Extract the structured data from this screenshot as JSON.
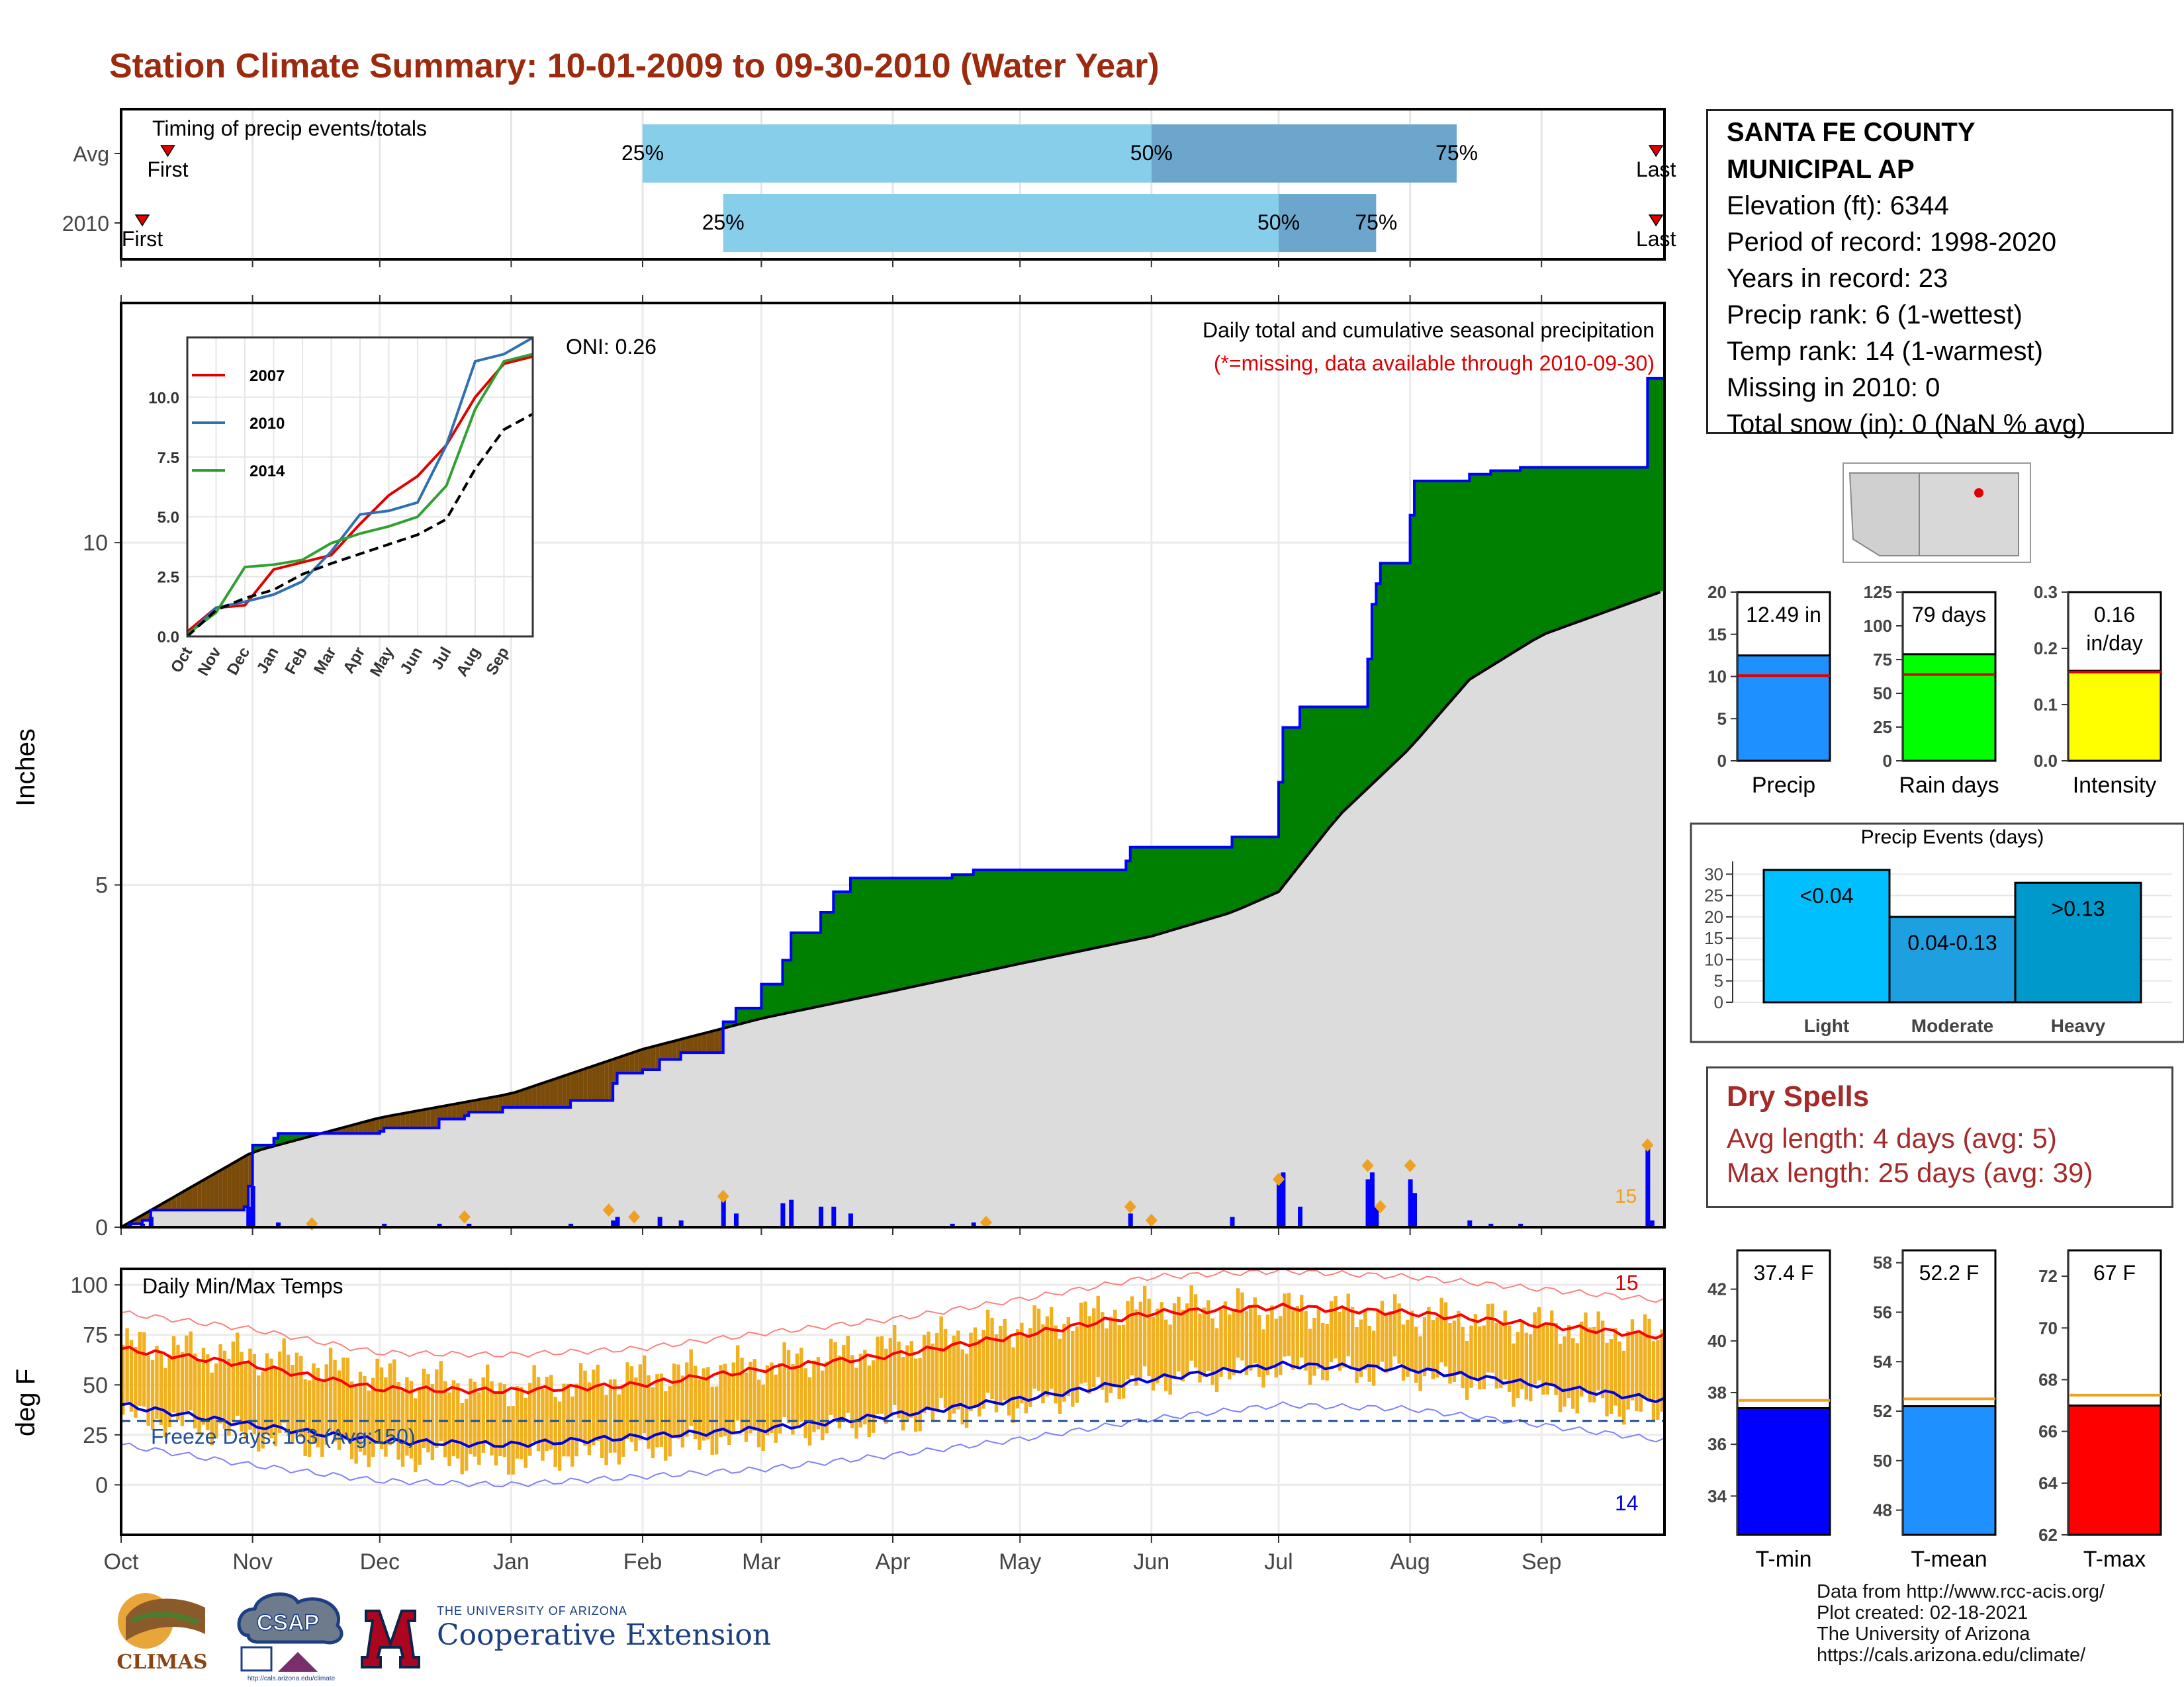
{
  "page": {
    "title": "Station Climate Summary: 10-01-2009 to 09-30-2010 (Water Year)"
  },
  "station": {
    "name_line1": "SANTA FE COUNTY",
    "name_line2": "MUNICIPAL AP",
    "elevation": "Elevation (ft): 6344",
    "period": "Period of record: 1998-2020",
    "years": "Years in record: 23",
    "precip_rank": "Precip rank: 6 (1-wettest)",
    "temp_rank": "Temp rank: 14 (1-warmest)",
    "missing": "Missing in 2010: 0",
    "snow": "Total snow (in): 0 (NaN % avg)"
  },
  "dry_spells": {
    "title": "Dry Spells",
    "avg": "Avg length: 4 days (avg: 5)",
    "max": "Max length: 25 days (avg: 39)"
  },
  "credits": {
    "line1": "Data from http://www.rcc-acis.org/",
    "line2": "Plot created: 02-18-2021",
    "line3": "The University of Arizona",
    "line4": "https://cals.arizona.edu/climate/"
  },
  "logos": {
    "climas": "CLIMAS",
    "csap": "CSAP",
    "csap_url": "http://cals.arizona.edu/climate",
    "coop_small": "THE UNIVERSITY OF ARIZONA",
    "coop_big": "Cooperative Extension"
  },
  "chart_data": [
    {
      "id": "timing",
      "type": "bar",
      "title": "Timing of precip events/totals",
      "rows": [
        {
          "label": "Avg",
          "first": "Oct 12",
          "p25": "Feb 1",
          "p50": "Jun 1",
          "p75": "Aug 12",
          "last": "Sep 28"
        },
        {
          "label": "2010",
          "first": "Oct 6",
          "p25": "Feb 20",
          "p50": "Jul 1",
          "p75": "Jul 24",
          "last": "Sep 28"
        }
      ],
      "labels": {
        "first": "First",
        "last": "Last",
        "p25": "25%",
        "p50": "50%",
        "p75": "75%"
      },
      "colors": {
        "light": "#87CEEB",
        "dark": "#6CA6CD",
        "marker": "#E00000"
      }
    },
    {
      "id": "precipitation",
      "type": "area",
      "ylabel": "Inches",
      "ylim": [
        0,
        13.5
      ],
      "yticks": [
        0,
        5,
        10
      ],
      "xticks": [
        "Oct",
        "Nov",
        "Dec",
        "Jan",
        "Feb",
        "Mar",
        "Apr",
        "May",
        "Jun",
        "Jul",
        "Aug",
        "Sep"
      ],
      "legend_text": "Daily total and cumulative seasonal precipitation",
      "note": "(*=missing, data available through 2010-09-30)",
      "oni": "ONI: 0.26",
      "max_label": "15",
      "cumulative_2010": [
        [
          "2009-10-01",
          0
        ],
        [
          "2009-10-03",
          0.05
        ],
        [
          "2009-10-06",
          0.1
        ],
        [
          "2009-10-08",
          0.25
        ],
        [
          "2009-10-30",
          0.3
        ],
        [
          "2009-10-31",
          0.6
        ],
        [
          "2009-11-01",
          1.2
        ],
        [
          "2009-11-06",
          1.3
        ],
        [
          "2009-11-07",
          1.37
        ],
        [
          "2009-12-01",
          1.4
        ],
        [
          "2009-12-02",
          1.45
        ],
        [
          "2009-12-15",
          1.58
        ],
        [
          "2009-12-21",
          1.63
        ],
        [
          "2009-12-22",
          1.68
        ],
        [
          "2009-12-30",
          1.75
        ],
        [
          "2010-01-15",
          1.85
        ],
        [
          "2010-01-25",
          2.1
        ],
        [
          "2010-01-26",
          2.25
        ],
        [
          "2010-02-01",
          2.3
        ],
        [
          "2010-02-05",
          2.45
        ],
        [
          "2010-02-10",
          2.55
        ],
        [
          "2010-02-20",
          3.0
        ],
        [
          "2010-02-23",
          3.2
        ],
        [
          "2010-03-01",
          3.55
        ],
        [
          "2010-03-06",
          3.9
        ],
        [
          "2010-03-08",
          4.3
        ],
        [
          "2010-03-15",
          4.6
        ],
        [
          "2010-03-18",
          4.9
        ],
        [
          "2010-03-22",
          5.1
        ],
        [
          "2010-04-15",
          5.15
        ],
        [
          "2010-04-20",
          5.22
        ],
        [
          "2010-05-26",
          5.35
        ],
        [
          "2010-05-27",
          5.55
        ],
        [
          "2010-06-20",
          5.7
        ],
        [
          "2010-07-01",
          6.5
        ],
        [
          "2010-07-02",
          7.3
        ],
        [
          "2010-07-06",
          7.6
        ],
        [
          "2010-07-22",
          8.3
        ],
        [
          "2010-07-23",
          9.1
        ],
        [
          "2010-07-24",
          9.4
        ],
        [
          "2010-07-25",
          9.7
        ],
        [
          "2010-08-01",
          10.4
        ],
        [
          "2010-08-02",
          10.9
        ],
        [
          "2010-08-10",
          10.9
        ],
        [
          "2010-08-15",
          11.0
        ],
        [
          "2010-08-20",
          11.05
        ],
        [
          "2010-08-27",
          11.1
        ],
        [
          "2010-09-25",
          11.1
        ],
        [
          "2010-09-26",
          12.4
        ],
        [
          "2010-09-30",
          12.49
        ]
      ],
      "cumulative_avg": [
        [
          "2009-10-01",
          0.0
        ],
        [
          "2009-11-01",
          1.1
        ],
        [
          "2009-12-01",
          1.6
        ],
        [
          "2010-01-01",
          1.95
        ],
        [
          "2010-02-01",
          2.6
        ],
        [
          "2010-03-01",
          3.05
        ],
        [
          "2010-04-01",
          3.45
        ],
        [
          "2010-05-01",
          3.85
        ],
        [
          "2010-06-01",
          4.25
        ],
        [
          "2010-06-20",
          4.6
        ],
        [
          "2010-07-01",
          4.9
        ],
        [
          "2010-07-15",
          6.0
        ],
        [
          "2010-08-01",
          7.0
        ],
        [
          "2010-08-15",
          8.0
        ],
        [
          "2010-09-01",
          8.65
        ],
        [
          "2010-09-30",
          9.3
        ]
      ],
      "daily_2010": [
        [
          "2009-10-03",
          0.05
        ],
        [
          "2009-10-06",
          0.05
        ],
        [
          "2009-10-08",
          0.15
        ],
        [
          "2009-10-31",
          0.3
        ],
        [
          "2009-11-01",
          0.6
        ],
        [
          "2009-11-07",
          0.07
        ],
        [
          "2009-12-02",
          0.05
        ],
        [
          "2009-12-15",
          0.05
        ],
        [
          "2009-12-22",
          0.05
        ],
        [
          "2010-01-15",
          0.05
        ],
        [
          "2010-01-25",
          0.1
        ],
        [
          "2010-01-26",
          0.15
        ],
        [
          "2010-02-05",
          0.15
        ],
        [
          "2010-02-10",
          0.1
        ],
        [
          "2010-02-20",
          0.45
        ],
        [
          "2010-02-23",
          0.2
        ],
        [
          "2010-03-06",
          0.35
        ],
        [
          "2010-03-08",
          0.4
        ],
        [
          "2010-03-15",
          0.3
        ],
        [
          "2010-03-18",
          0.3
        ],
        [
          "2010-03-22",
          0.2
        ],
        [
          "2010-04-15",
          0.05
        ],
        [
          "2010-04-20",
          0.07
        ],
        [
          "2010-05-27",
          0.2
        ],
        [
          "2010-06-20",
          0.15
        ],
        [
          "2010-07-01",
          0.7
        ],
        [
          "2010-07-02",
          0.8
        ],
        [
          "2010-07-06",
          0.3
        ],
        [
          "2010-07-22",
          0.7
        ],
        [
          "2010-07-23",
          0.8
        ],
        [
          "2010-07-24",
          0.3
        ],
        [
          "2010-08-01",
          0.7
        ],
        [
          "2010-08-02",
          0.5
        ],
        [
          "2010-08-15",
          0.1
        ],
        [
          "2010-08-20",
          0.05
        ],
        [
          "2010-08-27",
          0.05
        ],
        [
          "2010-09-26",
          1.2
        ],
        [
          "2010-09-27",
          0.1
        ]
      ],
      "daily_max_markers": [
        [
          "2009-11-15",
          0.05
        ],
        [
          "2009-12-21",
          0.15
        ],
        [
          "2010-01-24",
          0.25
        ],
        [
          "2010-01-30",
          0.15
        ],
        [
          "2010-02-20",
          0.45
        ],
        [
          "2010-04-23",
          0.07
        ],
        [
          "2010-05-27",
          0.3
        ],
        [
          "2010-06-01",
          0.1
        ],
        [
          "2010-07-01",
          0.7
        ],
        [
          "2010-07-22",
          0.9
        ],
        [
          "2010-07-25",
          0.3
        ],
        [
          "2010-08-01",
          0.9
        ],
        [
          "2010-09-26",
          1.2
        ]
      ],
      "colors": {
        "above": "#008000",
        "below": "#7B4B0A",
        "avg_fill": "#DCDCDC",
        "line": "#0000FF",
        "avg_line": "#000000",
        "marker": "#F0A020"
      }
    },
    {
      "id": "inset",
      "type": "line",
      "xticks": [
        "Oct",
        "Nov",
        "Dec",
        "Jan",
        "Feb",
        "Mar",
        "Apr",
        "May",
        "Jun",
        "Jul",
        "Aug",
        "Sep"
      ],
      "yticks": [
        0.0,
        2.5,
        5.0,
        7.5,
        10.0
      ],
      "yticklabels": [
        "0.0",
        "2.5",
        "5.0",
        "7.5",
        "10.0"
      ],
      "ylim": [
        0,
        12.5
      ],
      "series": [
        {
          "name": "2007",
          "color": "#E00000",
          "values": [
            0.2,
            1.2,
            1.3,
            2.8,
            3.1,
            3.4,
            4.7,
            5.9,
            6.7,
            8.0,
            10.0,
            11.4,
            11.7
          ]
        },
        {
          "name": "2010",
          "color": "#3070B0",
          "values": [
            0.05,
            1.2,
            1.45,
            1.75,
            2.3,
            3.55,
            5.1,
            5.25,
            5.6,
            8.0,
            11.5,
            11.8,
            12.49
          ]
        },
        {
          "name": "2014",
          "color": "#30A030",
          "values": [
            0.1,
            1.0,
            2.9,
            3.0,
            3.2,
            3.9,
            4.3,
            4.6,
            5.0,
            6.3,
            9.5,
            11.5,
            11.8
          ]
        },
        {
          "name": "avg",
          "color": "#000000",
          "values": [
            0.0,
            1.1,
            1.6,
            1.95,
            2.6,
            3.05,
            3.45,
            3.85,
            4.25,
            4.9,
            7.0,
            8.65,
            9.3
          ]
        }
      ]
    },
    {
      "id": "temps",
      "type": "area",
      "title": "Daily Min/Max Temps",
      "ylabel": "deg F",
      "ylim": [
        -25,
        108
      ],
      "yticks": [
        0,
        25,
        50,
        75,
        100
      ],
      "freeze_label": "Freeze Days: 163 (Avg:150)",
      "freeze_line": 32,
      "max_count_label": "15",
      "min_count_label": "14",
      "max_monthly": [
        70,
        65,
        55,
        48,
        55,
        60,
        70,
        80,
        90,
        88,
        85,
        80
      ],
      "min_monthly": [
        35,
        25,
        15,
        12,
        18,
        25,
        32,
        40,
        52,
        58,
        56,
        45
      ],
      "avg_max_monthly": [
        68,
        60,
        48,
        47,
        50,
        58,
        65,
        75,
        86,
        89,
        86,
        80
      ],
      "avg_min_monthly": [
        40,
        30,
        22,
        20,
        24,
        28,
        35,
        43,
        53,
        60,
        58,
        50
      ],
      "colors": {
        "bars": "#F0B020",
        "avg_max": "#FF0000",
        "avg_min": "#0000E0",
        "rec_max": "#FF8080",
        "rec_min": "#8080FF",
        "freeze": "#1F4E9A"
      }
    },
    {
      "id": "summary_bars",
      "type": "bar",
      "panels": [
        {
          "category": "Precip",
          "value": 12.49,
          "label": "12.49 in",
          "avg": 10.1,
          "ymax": 20,
          "yticks": [
            0,
            5,
            10,
            15,
            20
          ],
          "color": "#1E90FF"
        },
        {
          "category": "Rain days",
          "value": 79,
          "label": "79 days",
          "avg": 64,
          "ymax": 125,
          "yticks": [
            0,
            25,
            50,
            75,
            100,
            125
          ],
          "color": "#00FF00"
        },
        {
          "category": "Intensity",
          "value": 0.16,
          "label": "0.16 in/day",
          "label_a": "0.16",
          "label_b": "in/day",
          "avg": 0.158,
          "ymax": 0.3,
          "yticks": [
            0.0,
            0.1,
            0.2,
            0.3
          ],
          "yticklabels": [
            "0.0",
            "0.1",
            "0.2",
            "0.3"
          ],
          "color": "#FFFF00"
        }
      ]
    },
    {
      "id": "precip_events",
      "type": "bar",
      "title": "Precip Events (days)",
      "categories": [
        "Light",
        "Moderate",
        "Heavy"
      ],
      "values": [
        31,
        20,
        28
      ],
      "bar_labels": [
        "<0.04",
        "0.04-0.13",
        ">0.13"
      ],
      "yticks": [
        0,
        5,
        10,
        15,
        20,
        25,
        30
      ],
      "ymax": 33,
      "colors": [
        "#00BFFF",
        "#1E9FE0",
        "#0099CC"
      ]
    },
    {
      "id": "temp_bars",
      "type": "bar",
      "panels": [
        {
          "category": "T-min",
          "value": 37.4,
          "label": "37.4 F",
          "avg": 37.7,
          "ylim": [
            32.5,
            43.5
          ],
          "yticks": [
            34,
            36,
            38,
            40,
            42
          ],
          "color": "#0000FF"
        },
        {
          "category": "T-mean",
          "value": 52.2,
          "label": "52.2 F",
          "avg": 52.5,
          "ylim": [
            47,
            58.5
          ],
          "yticks": [
            48,
            50,
            52,
            54,
            56,
            58
          ],
          "color": "#1E90FF"
        },
        {
          "category": "T-max",
          "value": 67,
          "label": "67 F",
          "avg": 67.4,
          "ylim": [
            62,
            73
          ],
          "yticks": [
            62,
            64,
            66,
            68,
            70,
            72
          ],
          "color": "#FF0000"
        }
      ]
    }
  ]
}
